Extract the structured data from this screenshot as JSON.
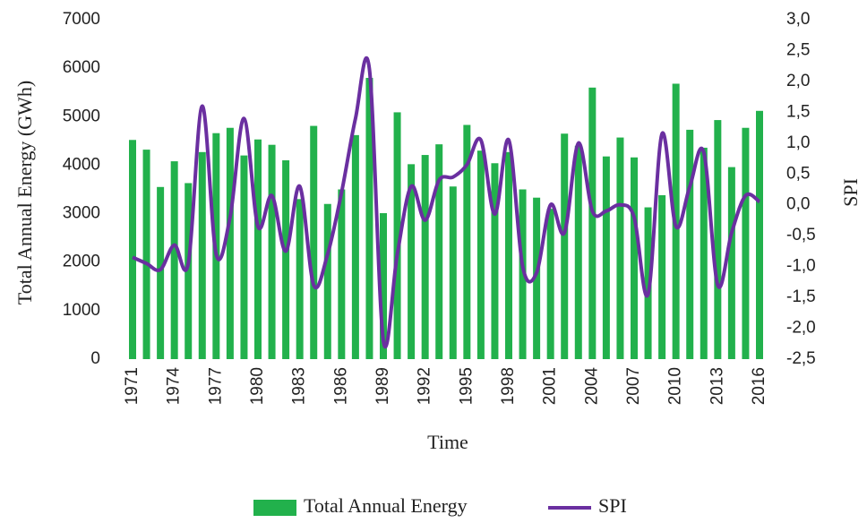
{
  "chart_data": {
    "type": "bar-line",
    "y_label": "Total Annual Energy (GWh)",
    "y2_label": "SPI",
    "x_label": "Time",
    "categories": [
      "1971",
      null,
      null,
      "1974",
      null,
      null,
      "1977",
      null,
      null,
      "1980",
      null,
      null,
      "1983",
      null,
      null,
      "1986",
      null,
      null,
      "1989",
      null,
      null,
      "1992",
      null,
      null,
      "1995",
      null,
      null,
      "1998",
      null,
      null,
      "2001",
      null,
      null,
      "2004",
      null,
      null,
      "2007",
      null,
      null,
      "2010",
      null,
      null,
      "2013",
      null,
      null,
      "2016"
    ],
    "series": [
      {
        "name": "Total Annual Energy",
        "color": "#22b14c",
        "kind": "bar",
        "values": [
          4520,
          4320,
          3550,
          4080,
          3630,
          4270,
          4660,
          4770,
          4200,
          4530,
          4420,
          4100,
          3300,
          4810,
          3200,
          3500,
          4620,
          5800,
          3010,
          5090,
          4020,
          4210,
          4430,
          3560,
          4830,
          4300,
          4040,
          4270,
          3500,
          3330,
          3100,
          4650,
          4400,
          5600,
          4180,
          4570,
          4160,
          3130,
          3380,
          5680,
          4730,
          4360,
          4930,
          3960,
          4770,
          5120
        ]
      },
      {
        "name": "SPI",
        "color": "#6a2fa0",
        "kind": "line",
        "axis": "y2",
        "values": [
          -0.85,
          -0.95,
          -1.05,
          -0.65,
          -0.95,
          1.6,
          -0.8,
          -0.2,
          1.4,
          -0.35,
          0.15,
          -0.75,
          0.3,
          -1.3,
          -0.8,
          0.2,
          1.4,
          2.2,
          -2.2,
          -0.8,
          0.3,
          -0.25,
          0.4,
          0.45,
          0.65,
          1.05,
          -0.15,
          1.05,
          -1.0,
          -1.1,
          0.0,
          -0.45,
          1.0,
          -0.1,
          -0.1,
          0.0,
          -0.2,
          -1.45,
          1.15,
          -0.35,
          0.3,
          0.85,
          -1.3,
          -0.45,
          0.15,
          0.05
        ]
      }
    ],
    "ylim": [
      0,
      7000
    ],
    "yticks": [
      0,
      1000,
      2000,
      3000,
      4000,
      5000,
      6000,
      7000
    ],
    "y2lim": [
      -2.5,
      3.0
    ],
    "y2ticks": [
      {
        "value": -2.5,
        "label": "-2,5"
      },
      {
        "value": -2.0,
        "label": "-2,0"
      },
      {
        "value": -1.5,
        "label": "-1,5"
      },
      {
        "value": -1.0,
        "label": "-1,0"
      },
      {
        "value": -0.5,
        "label": "-0,5"
      },
      {
        "value": 0,
        "label": "0,0"
      },
      {
        "value": 0.5,
        "label": "0,5"
      },
      {
        "value": 1.0,
        "label": "1,0"
      },
      {
        "value": 1.5,
        "label": "1,5"
      },
      {
        "value": 2.0,
        "label": "2,0"
      },
      {
        "value": 2.5,
        "label": "2,5"
      },
      {
        "value": 3.0,
        "label": "3,0"
      }
    ],
    "legend": "bottom"
  }
}
